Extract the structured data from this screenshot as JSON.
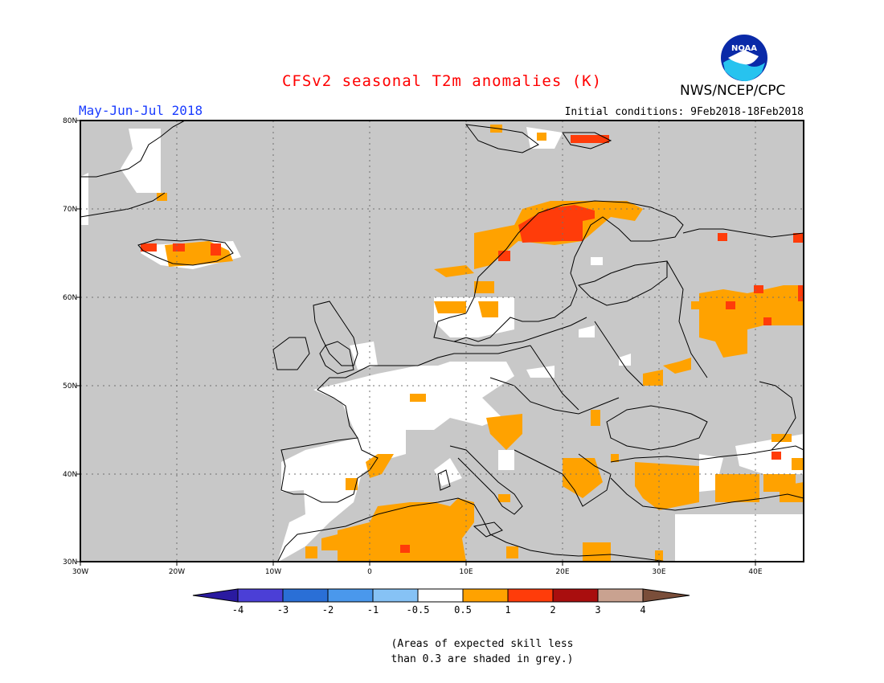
{
  "header": {
    "title": "CFSv2 seasonal T2m anomalies (K)",
    "period": "May-Jun-Jul 2018",
    "initial_conditions": "Initial conditions: 9Feb2018-18Feb2018",
    "organization": "NWS/NCEP/CPC",
    "logo_text": "NOAA",
    "title_color": "#ff0000",
    "period_color": "#1a3cff"
  },
  "map": {
    "region": "Europe",
    "lon_range": [
      -30,
      45
    ],
    "lat_range": [
      30,
      80
    ],
    "lat_labels": [
      "30N",
      "40N",
      "50N",
      "60N",
      "70N",
      "80N"
    ],
    "lon_labels": [
      "30W",
      "20W",
      "10W",
      "0",
      "10E",
      "20E",
      "30E",
      "40E"
    ],
    "background_color": "#c8c8c8"
  },
  "legend": {
    "labels": [
      "-4",
      "-3",
      "-2",
      "-1",
      "-0.5",
      "0.5",
      "1",
      "2",
      "3",
      "4"
    ],
    "colors": [
      "#2a1aa0",
      "#4b3fd6",
      "#2a6fd6",
      "#4a98ec",
      "#86c2f5",
      "#ffffff",
      "#ffa200",
      "#ff3c0a",
      "#a90e0e",
      "#c9a290",
      "#7a4e3a"
    ]
  },
  "skill_note": {
    "line1": "(Areas of expected skill less",
    "line2": "than 0.3 are shaded in grey.)"
  }
}
